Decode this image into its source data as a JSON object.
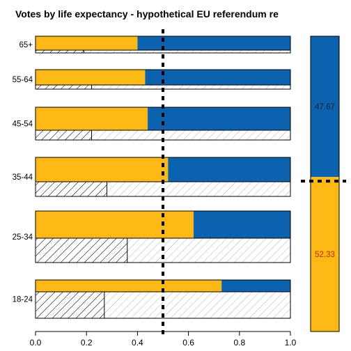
{
  "chart_data": {
    "type": "bar",
    "title": "Votes by life expectancy - hypothetical EU referendum re",
    "orientation": "horizontal",
    "stacked": true,
    "categories": [
      "18-24",
      "25-34",
      "35-44",
      "45-54",
      "55-64",
      "65+"
    ],
    "series": [
      {
        "color": "#FDB913",
        "values": [
          0.73,
          0.62,
          0.52,
          0.44,
          0.43,
          0.4
        ]
      },
      {
        "color": "#0B63B0",
        "values": [
          0.27,
          0.38,
          0.48,
          0.56,
          0.57,
          0.6
        ]
      }
    ],
    "secondary_shaded_values": [
      0.27,
      0.36,
      0.28,
      0.22,
      0.22,
      0.19
    ],
    "xlim": [
      0,
      1
    ],
    "x_ticks": [
      "0.0",
      "0.2",
      "0.4",
      "0.6",
      "0.8",
      "1.0"
    ],
    "reference_line": 0.5,
    "summary": {
      "values": [
        52.33,
        47.67
      ],
      "labels": [
        "52.33",
        "47.67"
      ],
      "colors": [
        "#FDB913",
        "#0B63B0"
      ],
      "label_colors": [
        "#cc2200",
        "#222222"
      ]
    }
  }
}
